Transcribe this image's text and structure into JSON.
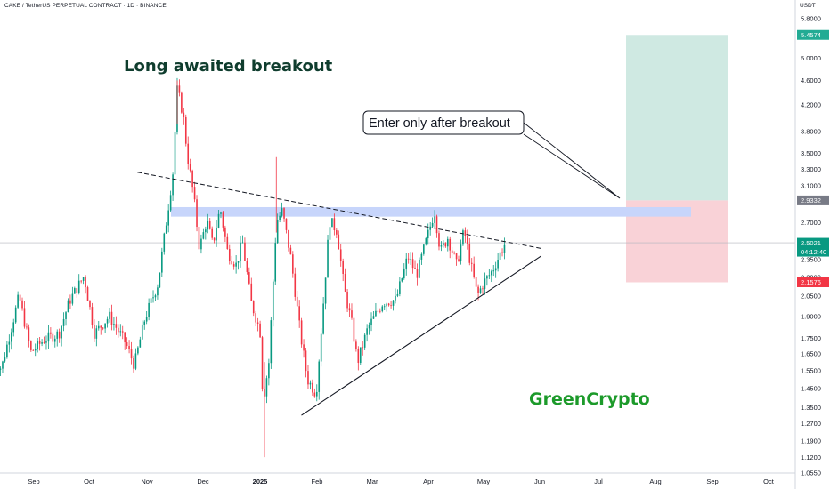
{
  "header": {
    "symbol": "CAKE / TetherUS PERPETUAL CONTRACT · 1D · BINANCE",
    "currency": "USDT"
  },
  "chart_data": {
    "type": "candlestick",
    "title": "Long awaited breakout",
    "watermark": "GreenCrypto",
    "annotation": "Enter only after breakout",
    "x_ticks": [
      "Sep",
      "Oct",
      "Nov",
      "Dec",
      "2025",
      "Feb",
      "Mar",
      "Apr",
      "May",
      "Jun",
      "Jul",
      "Aug",
      "Sep",
      "Oct"
    ],
    "y_ticks": [
      "5.8000",
      "5.4574",
      "5.0000",
      "4.6000",
      "4.2000",
      "3.8000",
      "3.5000",
      "3.3000",
      "3.1000",
      "2.9332",
      "2.7000",
      "2.5021",
      "04:12:40",
      "2.3500",
      "2.2000",
      "2.1576",
      "2.0500",
      "1.9000",
      "1.7500",
      "1.6500",
      "1.5500",
      "1.4500",
      "1.3500",
      "1.2700",
      "1.1900",
      "1.1200",
      "1.0550"
    ],
    "ylim": [
      1.0,
      6.0
    ],
    "scale": "log",
    "current_price": 2.5021,
    "countdown": "04:12:40",
    "trade_setup": {
      "target": 5.4574,
      "entry": 2.9332,
      "stop": 2.1576
    },
    "resistance_zone": [
      2.76,
      2.86
    ],
    "upper_trendline": [
      {
        "date": "2024-11-10",
        "price": 3.26
      },
      {
        "date": "2025-08-10",
        "price": 2.45
      }
    ],
    "lower_trendline": [
      {
        "date": "2025-03-01",
        "price": 1.31
      },
      {
        "date": "2025-08-10",
        "price": 2.38
      }
    ],
    "price_path": [
      {
        "date": "2024-08-05",
        "price": 1.62
      },
      {
        "date": "2024-08-10",
        "price": 1.56
      },
      {
        "date": "2024-08-22",
        "price": 2.05
      },
      {
        "date": "2024-08-30",
        "price": 1.66
      },
      {
        "date": "2024-09-08",
        "price": 1.74
      },
      {
        "date": "2024-09-18",
        "price": 1.78
      },
      {
        "date": "2024-09-25",
        "price": 2.01
      },
      {
        "date": "2024-10-05",
        "price": 2.21
      },
      {
        "date": "2024-10-12",
        "price": 1.78
      },
      {
        "date": "2024-10-22",
        "price": 1.9
      },
      {
        "date": "2024-11-02",
        "price": 1.72
      },
      {
        "date": "2024-11-08",
        "price": 1.58
      },
      {
        "date": "2024-11-15",
        "price": 1.88
      },
      {
        "date": "2024-11-24",
        "price": 2.15
      },
      {
        "date": "2024-11-30",
        "price": 2.75
      },
      {
        "date": "2024-12-04",
        "price": 3.25
      },
      {
        "date": "2024-12-07",
        "price": 4.45
      },
      {
        "date": "2024-12-11",
        "price": 4.05
      },
      {
        "date": "2024-12-14",
        "price": 3.45
      },
      {
        "date": "2024-12-18",
        "price": 3.0
      },
      {
        "date": "2024-12-22",
        "price": 2.45
      },
      {
        "date": "2024-12-27",
        "price": 2.72
      },
      {
        "date": "2024-12-31",
        "price": 2.48
      },
      {
        "date": "2025-01-05",
        "price": 2.85
      },
      {
        "date": "2025-01-10",
        "price": 2.42
      },
      {
        "date": "2025-01-16",
        "price": 2.3
      },
      {
        "date": "2025-01-20",
        "price": 2.52
      },
      {
        "date": "2025-01-26",
        "price": 2.0
      },
      {
        "date": "2025-02-01",
        "price": 1.8
      },
      {
        "date": "2025-02-03",
        "price": 1.38
      },
      {
        "date": "2025-02-07",
        "price": 1.6
      },
      {
        "date": "2025-02-12",
        "price": 2.7
      },
      {
        "date": "2025-02-16",
        "price": 2.82
      },
      {
        "date": "2025-02-22",
        "price": 2.35
      },
      {
        "date": "2025-02-28",
        "price": 1.8
      },
      {
        "date": "2025-03-05",
        "price": 1.5
      },
      {
        "date": "2025-03-11",
        "price": 1.42
      },
      {
        "date": "2025-03-15",
        "price": 1.88
      },
      {
        "date": "2025-03-20",
        "price": 2.72
      },
      {
        "date": "2025-03-25",
        "price": 2.62
      },
      {
        "date": "2025-03-30",
        "price": 2.1
      },
      {
        "date": "2025-04-04",
        "price": 1.85
      },
      {
        "date": "2025-04-08",
        "price": 1.6
      },
      {
        "date": "2025-04-15",
        "price": 1.82
      },
      {
        "date": "2025-04-25",
        "price": 2.0
      },
      {
        "date": "2025-05-04",
        "price": 2.02
      },
      {
        "date": "2025-05-12",
        "price": 2.38
      },
      {
        "date": "2025-05-18",
        "price": 2.22
      },
      {
        "date": "2025-05-25",
        "price": 2.55
      },
      {
        "date": "2025-05-30",
        "price": 2.82
      },
      {
        "date": "2025-06-03",
        "price": 2.42
      },
      {
        "date": "2025-06-08",
        "price": 2.55
      },
      {
        "date": "2025-06-14",
        "price": 2.3
      },
      {
        "date": "2025-06-19",
        "price": 2.62
      },
      {
        "date": "2025-06-24",
        "price": 2.28
      },
      {
        "date": "2025-06-28",
        "price": 2.05
      },
      {
        "date": "2025-07-02",
        "price": 2.15
      },
      {
        "date": "2025-07-08",
        "price": 2.25
      },
      {
        "date": "2025-07-14",
        "price": 2.42
      },
      {
        "date": "2025-07-17",
        "price": 2.5021
      }
    ]
  },
  "colors": {
    "up": "#089981",
    "down": "#f23645",
    "profit_zone": "#cfe9e2",
    "loss_zone": "#f9d2d7",
    "resistance": "#c7d5fb",
    "target_tag": "#22ab94",
    "stop_tag": "#f23645",
    "entry_tag": "#787b86",
    "price_tag": "#089981"
  }
}
